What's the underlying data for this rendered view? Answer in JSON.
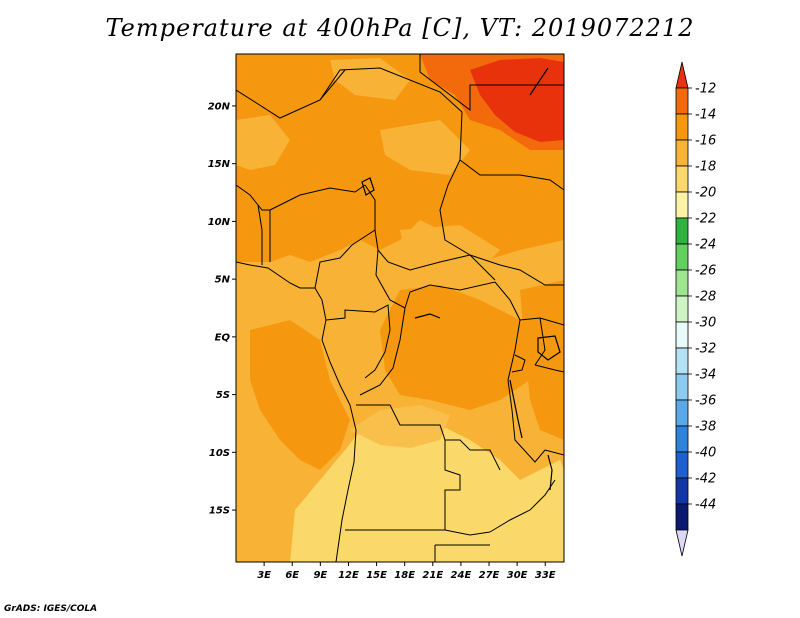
{
  "title": "Temperature at 400hPa [C], VT: 2019072212",
  "credit": "GrADS: IGES/COLA",
  "map": {
    "lon_range": [
      0,
      35
    ],
    "lat_range": [
      -19.5,
      24.5
    ],
    "lat_labels": [
      "20N",
      "15N",
      "10N",
      "5N",
      "EQ",
      "5S",
      "10S",
      "15S"
    ],
    "lat_values": [
      20,
      15,
      10,
      5,
      0,
      -5,
      -10,
      -15
    ],
    "lon_labels": [
      "3E",
      "6E",
      "9E",
      "12E",
      "15E",
      "18E",
      "21E",
      "24E",
      "27E",
      "30E",
      "33E"
    ],
    "lon_values": [
      3,
      6,
      9,
      12,
      15,
      18,
      21,
      24,
      27,
      30,
      33
    ]
  },
  "colorbar": {
    "labels": [
      "-12",
      "-14",
      "-16",
      "-18",
      "-20",
      "-22",
      "-24",
      "-26",
      "-28",
      "-30",
      "-32",
      "-34",
      "-36",
      "-38",
      "-40",
      "-42",
      "-44"
    ],
    "colors": [
      "#e8320c",
      "#f26a0c",
      "#f5980f",
      "#f8b236",
      "#fad96a",
      "#fdf3a6",
      "#2fb33c",
      "#63cf5f",
      "#9fe58f",
      "#cdf5c4",
      "#e8fbfa",
      "#b5e1f5",
      "#8dcaf0",
      "#5aa8e8",
      "#2e84dd",
      "#1f5fcf",
      "#1435a8",
      "#0b1a70",
      "#ddd8f5"
    ]
  },
  "colors": {
    "deg_m12": "#e8320c",
    "deg_m14": "#f26a0c",
    "deg_m16": "#f5980f",
    "deg_m18": "#f8b236",
    "deg_m20": "#fad96a",
    "border": "#000000"
  }
}
